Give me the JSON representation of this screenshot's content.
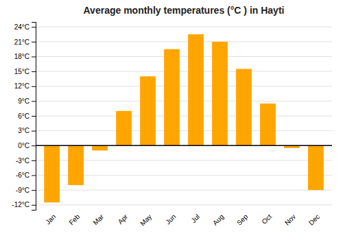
{
  "chart_data": {
    "type": "bar",
    "title": "Average monthly temperatures (°C ) in Hayti",
    "categories": [
      "Jan",
      "Feb",
      "Mar",
      "Apr",
      "May",
      "Jun",
      "Jul",
      "Aug",
      "Sep",
      "Oct",
      "Nov",
      "Dec"
    ],
    "values": [
      -11.5,
      -8.0,
      -1.0,
      7.0,
      14.0,
      19.5,
      22.5,
      21.0,
      15.5,
      8.5,
      -0.5,
      -9.0
    ],
    "color": "#FFA500",
    "ylim": [
      -13,
      25
    ],
    "yticks": [
      {
        "value": -12,
        "label": "-12°C"
      },
      {
        "value": -9,
        "label": "-9°C"
      },
      {
        "value": -6,
        "label": "-6°C"
      },
      {
        "value": -3,
        "label": "-3°C"
      },
      {
        "value": 0,
        "label": "0°C"
      },
      {
        "value": 3,
        "label": "3°C"
      },
      {
        "value": 6,
        "label": "6°C"
      },
      {
        "value": 9,
        "label": "9°C"
      },
      {
        "value": 12,
        "label": "12°C"
      },
      {
        "value": 15,
        "label": "15°C"
      },
      {
        "value": 18,
        "label": "18°C"
      },
      {
        "value": 21,
        "label": "21°C"
      },
      {
        "value": 24,
        "label": "24°C"
      }
    ],
    "grid": true
  }
}
